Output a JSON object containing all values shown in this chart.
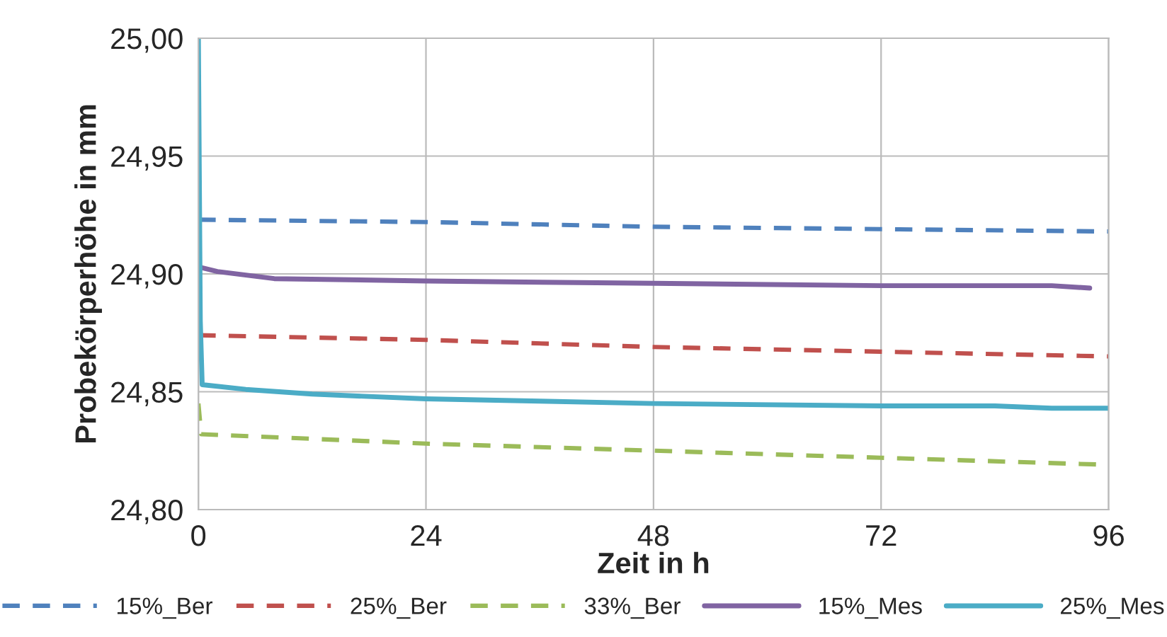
{
  "chart_data": {
    "type": "line",
    "xlabel": "Zeit in h",
    "ylabel": "Probekörperhöhe in mm",
    "xlim": [
      0,
      96
    ],
    "xticks": [
      0,
      24,
      48,
      72,
      96
    ],
    "ylim": [
      24.8,
      25.0
    ],
    "yticks": [
      {
        "value": 24.8,
        "label": "24,80"
      },
      {
        "value": 24.85,
        "label": "24,85"
      },
      {
        "value": 24.9,
        "label": "24,90"
      },
      {
        "value": 24.95,
        "label": "24,95"
      },
      {
        "value": 25.0,
        "label": "25,00"
      }
    ],
    "grid": true,
    "legend": "bottom",
    "marker": "none",
    "series": [
      {
        "name": "15%_Ber",
        "color": "#4f81bd",
        "line_style": "dashed",
        "x": [
          0,
          24,
          48,
          72,
          96
        ],
        "values": [
          24.923,
          24.922,
          24.92,
          24.919,
          24.918
        ]
      },
      {
        "name": "25%_Ber",
        "color": "#c0504d",
        "line_style": "dashed",
        "x": [
          0,
          24,
          48,
          72,
          96
        ],
        "values": [
          24.874,
          24.872,
          24.869,
          24.867,
          24.865
        ]
      },
      {
        "name": "33%_Ber",
        "color": "#9bbb59",
        "line_style": "dashed",
        "x": [
          0,
          0.3,
          24,
          48,
          72,
          96
        ],
        "values": [
          24.845,
          24.832,
          24.828,
          24.825,
          24.822,
          24.819
        ]
      },
      {
        "name": "15%_Mes",
        "color": "#8064a2",
        "line_style": "solid",
        "x": [
          0,
          2,
          8,
          24,
          48,
          72,
          90,
          94
        ],
        "values": [
          24.903,
          24.901,
          24.898,
          24.897,
          24.896,
          24.895,
          24.895,
          24.894
        ]
      },
      {
        "name": "25%_Mes",
        "color": "#4bacc6",
        "line_style": "solid",
        "x": [
          0,
          0.2,
          0.4,
          5,
          12,
          24,
          36,
          48,
          72,
          84,
          90,
          96
        ],
        "values": [
          25.0,
          24.88,
          24.853,
          24.851,
          24.849,
          24.847,
          24.846,
          24.845,
          24.844,
          24.844,
          24.843,
          24.843
        ]
      }
    ]
  }
}
